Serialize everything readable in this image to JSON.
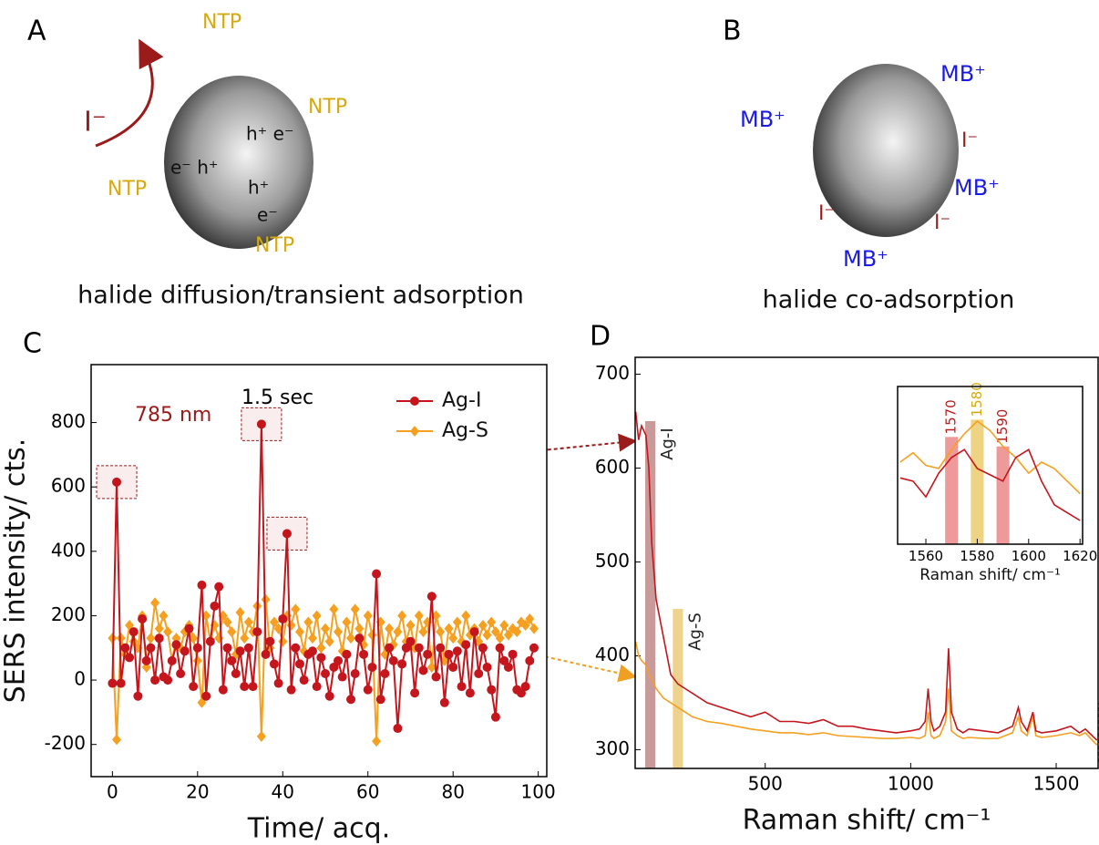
{
  "panels": {
    "A": {
      "label": "A",
      "caption": "halide diffusion/transient adsorption",
      "halide": "I⁻",
      "molecules": [
        "NTP",
        "NTP",
        "NTP",
        "NTP"
      ],
      "carriers": [
        "h⁺ e⁻",
        "e⁻ h⁺",
        "h⁺",
        "e⁻"
      ]
    },
    "B": {
      "label": "B",
      "caption": "halide co-adsorption",
      "molecules": [
        "MB⁺",
        "MB⁺",
        "MB⁺",
        "MB⁺"
      ],
      "halides": [
        "I⁻",
        "I⁻",
        "I⁻"
      ]
    }
  },
  "chart_data": [
    {
      "type": "line",
      "panel_label": "C",
      "annotations": [
        "785 nm",
        "1.5 sec"
      ],
      "xlabel": "Time/ acq.",
      "ylabel": "SERS intensity/ cts.",
      "legend": "upper right",
      "xlim": [
        -5,
        102
      ],
      "ylim": [
        -300,
        980
      ],
      "xticks": [
        0,
        20,
        40,
        60,
        80,
        100
      ],
      "yticks": [
        -200,
        0,
        200,
        400,
        600,
        800
      ],
      "x": [
        0,
        1,
        2,
        3,
        4,
        5,
        6,
        7,
        8,
        9,
        10,
        11,
        12,
        13,
        14,
        15,
        16,
        17,
        18,
        19,
        20,
        21,
        22,
        23,
        24,
        25,
        26,
        27,
        28,
        29,
        30,
        31,
        32,
        33,
        34,
        35,
        36,
        37,
        38,
        39,
        40,
        41,
        42,
        43,
        44,
        45,
        46,
        47,
        48,
        49,
        50,
        51,
        52,
        53,
        54,
        55,
        56,
        57,
        58,
        59,
        60,
        61,
        62,
        63,
        64,
        65,
        66,
        67,
        68,
        69,
        70,
        71,
        72,
        73,
        74,
        75,
        76,
        77,
        78,
        79,
        80,
        81,
        82,
        83,
        84,
        85,
        86,
        87,
        88,
        89,
        90,
        91,
        92,
        93,
        94,
        95,
        96,
        97,
        98,
        99
      ],
      "series": [
        {
          "name": "Ag-S",
          "color": "#f5a020",
          "marker": "diamond",
          "values": [
            130,
            -185,
            130,
            80,
            170,
            120,
            100,
            200,
            40,
            130,
            240,
            160,
            200,
            150,
            60,
            130,
            100,
            150,
            170,
            130,
            60,
            -70,
            200,
            120,
            170,
            130,
            200,
            180,
            150,
            80,
            210,
            130,
            180,
            150,
            230,
            -175,
            250,
            100,
            180,
            160,
            120,
            200,
            170,
            220,
            150,
            90,
            180,
            130,
            200,
            100,
            160,
            120,
            220,
            150,
            90,
            180,
            130,
            220,
            160,
            110,
            200,
            140,
            -190,
            180,
            80,
            160,
            110,
            150,
            200,
            120,
            170,
            100,
            200,
            150,
            180,
            40,
            200,
            150,
            60,
            160,
            130,
            180,
            120,
            200,
            140,
            160,
            120,
            170,
            140,
            180,
            150,
            130,
            170,
            140,
            160,
            150,
            180,
            170,
            190,
            160
          ]
        },
        {
          "name": "Ag-I",
          "color": "#c4161c",
          "marker": "circle",
          "values": [
            -10,
            615,
            -10,
            100,
            70,
            150,
            -50,
            190,
            60,
            100,
            0,
            130,
            10,
            0,
            60,
            110,
            20,
            90,
            160,
            -20,
            100,
            295,
            -50,
            120,
            230,
            290,
            -30,
            100,
            60,
            20,
            90,
            -20,
            100,
            -20,
            150,
            795,
            80,
            120,
            50,
            -10,
            190,
            455,
            -30,
            100,
            50,
            0,
            80,
            90,
            -20,
            70,
            20,
            -50,
            40,
            60,
            10,
            80,
            -60,
            20,
            130,
            80,
            -30,
            40,
            330,
            -60,
            20,
            100,
            60,
            -150,
            50,
            100,
            120,
            -40,
            100,
            30,
            80,
            260,
            10,
            100,
            -70,
            80,
            40,
            90,
            -20,
            110,
            -40,
            150,
            20,
            100,
            40,
            -30,
            -115,
            100,
            60,
            40,
            80,
            -30,
            -40,
            -20,
            60,
            100
          ]
        }
      ]
    },
    {
      "type": "line",
      "panel_label": "D",
      "xlabel": "Raman shift/ cm⁻¹",
      "xlim": [
        53,
        1644
      ],
      "ylim": [
        280,
        718
      ],
      "xticks": [
        500,
        1000,
        1500
      ],
      "yticks": [
        300,
        400,
        500,
        600,
        700
      ],
      "bands": [
        {
          "name": "Ag-I",
          "center": 105,
          "top": 650,
          "color": "#b57878"
        },
        {
          "name": "Ag-S",
          "center": 200,
          "top": 450,
          "color": "#e8c468"
        }
      ],
      "x": [
        55,
        65,
        75,
        90,
        100,
        110,
        125,
        150,
        175,
        200,
        225,
        250,
        300,
        350,
        400,
        450,
        500,
        550,
        600,
        650,
        700,
        750,
        800,
        850,
        900,
        950,
        1000,
        1030,
        1050,
        1060,
        1070,
        1080,
        1100,
        1120,
        1130,
        1140,
        1160,
        1180,
        1200,
        1250,
        1300,
        1350,
        1370,
        1380,
        1400,
        1420,
        1430,
        1450,
        1500,
        1550,
        1580,
        1600,
        1640
      ],
      "series": [
        {
          "name": "Ag-S",
          "color": "#f5a020",
          "values": [
            415,
            400,
            395,
            390,
            380,
            375,
            365,
            355,
            350,
            345,
            340,
            335,
            330,
            328,
            325,
            322,
            320,
            318,
            318,
            316,
            318,
            315,
            314,
            313,
            312,
            312,
            313,
            312,
            315,
            340,
            315,
            312,
            315,
            330,
            365,
            320,
            315,
            312,
            313,
            312,
            312,
            318,
            335,
            320,
            315,
            335,
            315,
            313,
            315,
            318,
            315,
            318,
            305
          ]
        },
        {
          "name": "Ag-I",
          "color": "#c4161c",
          "values": [
            660,
            630,
            645,
            635,
            600,
            520,
            460,
            420,
            380,
            370,
            365,
            360,
            350,
            345,
            340,
            335,
            340,
            330,
            330,
            328,
            332,
            325,
            325,
            322,
            320,
            318,
            320,
            322,
            330,
            365,
            330,
            320,
            325,
            340,
            408,
            340,
            322,
            318,
            322,
            320,
            318,
            325,
            345,
            330,
            320,
            340,
            320,
            318,
            320,
            325,
            318,
            322,
            310
          ]
        }
      ]
    },
    {
      "type": "line",
      "xlabel": "Raman shift/ cm⁻¹",
      "xlim": [
        1549,
        1621
      ],
      "ylim": [
        0,
        100
      ],
      "xticks": [
        1560,
        1580,
        1600,
        1620
      ],
      "bands": [
        {
          "center": 1570,
          "top": 68,
          "color": "#e87878"
        },
        {
          "center": 1580,
          "top": 79,
          "color": "#e8c458"
        },
        {
          "center": 1590,
          "top": 62,
          "color": "#e87878"
        }
      ],
      "x": [
        1550,
        1555,
        1560,
        1565,
        1570,
        1575,
        1580,
        1585,
        1590,
        1595,
        1600,
        1605,
        1610,
        1615,
        1620
      ],
      "series": [
        {
          "name": "Ag-S",
          "color": "#f5a020",
          "values": [
            52,
            58,
            50,
            48,
            60,
            70,
            78,
            72,
            62,
            55,
            45,
            52,
            48,
            40,
            32
          ]
        },
        {
          "name": "Ag-I",
          "color": "#c4161c",
          "values": [
            42,
            40,
            30,
            45,
            55,
            60,
            48,
            44,
            40,
            55,
            60,
            40,
            25,
            20,
            15
          ]
        }
      ]
    }
  ]
}
